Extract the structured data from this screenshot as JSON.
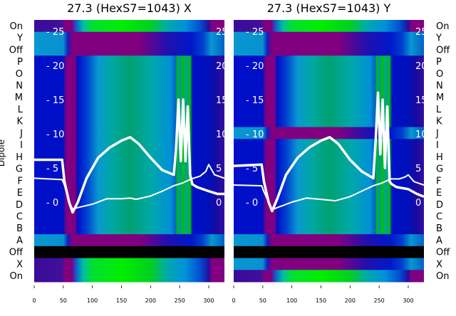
{
  "chart_data": [
    {
      "type": "heatmap",
      "title": "27.3 (HexS7=1043) X",
      "ylabel": "Dipole",
      "row_labels": [
        "On",
        "Y",
        "Off",
        "P",
        "O",
        "N",
        "M",
        "L",
        "K",
        "J",
        "I",
        "H",
        "G",
        "F",
        "E",
        "D",
        "C",
        "B",
        "A",
        "Off",
        "X",
        "On"
      ],
      "row_profiles": [
        "on",
        "ring",
        "ring",
        "dip",
        "dip",
        "dip",
        "dip",
        "dip",
        "dip",
        "dip",
        "dip",
        "dip",
        "dip",
        "dip",
        "dip",
        "dip",
        "dip",
        "dip",
        "ring",
        "off",
        "on",
        "on"
      ],
      "xlim": [
        0,
        327
      ],
      "x_ticks": [
        "0",
        "50",
        "100",
        "150",
        "200",
        "250",
        "300"
      ],
      "overlay_ylim": [
        -3,
        26
      ],
      "overlay_y_ticks": [
        "0",
        "5",
        "10",
        "15",
        "20",
        "25"
      ],
      "series": [
        {
          "name": "trace-1",
          "x": [
            0,
            48,
            52,
            60,
            66,
            75,
            90,
            110,
            130,
            150,
            165,
            180,
            200,
            220,
            240,
            244,
            248,
            252,
            256,
            260,
            264,
            268,
            272,
            280,
            300,
            315,
            327
          ],
          "y": [
            6.2,
            6.2,
            3,
            0,
            -1.5,
            0,
            3.5,
            6.5,
            8,
            9,
            9.5,
            8.5,
            6.5,
            4.7,
            4,
            8,
            15,
            6,
            15,
            6,
            14,
            4,
            2.6,
            2.2,
            1.6,
            1.2,
            1.2
          ]
        },
        {
          "name": "trace-2",
          "x": [
            0,
            48,
            52,
            60,
            66,
            75,
            100,
            125,
            150,
            165,
            175,
            200,
            220,
            240,
            255,
            270,
            285,
            295,
            300,
            310,
            327
          ],
          "y": [
            3.5,
            3.3,
            2.5,
            0,
            -1,
            -0.8,
            -0.3,
            0.5,
            0.5,
            0.6,
            0.4,
            0.9,
            1.6,
            2.4,
            2.8,
            3.4,
            3.8,
            4.5,
            5.5,
            4,
            3.5
          ]
        }
      ]
    },
    {
      "type": "heatmap",
      "title": "27.3 (HexS7=1043) Y",
      "row_labels": [
        "On",
        "Y",
        "Off",
        "P",
        "O",
        "N",
        "M",
        "L",
        "K",
        "J",
        "I",
        "H",
        "G",
        "F",
        "E",
        "D",
        "C",
        "B",
        "A",
        "Off",
        "X",
        "On"
      ],
      "row_profiles": [
        "on",
        "ring",
        "ring",
        "dip",
        "dip",
        "dip",
        "dip",
        "dip",
        "dip",
        "ring",
        "dip",
        "dip",
        "dip",
        "dip",
        "dip",
        "dip",
        "dip",
        "dip",
        "ring",
        "off",
        "ring",
        "on"
      ],
      "xlim": [
        0,
        327
      ],
      "x_ticks": [
        "0",
        "50",
        "100",
        "150",
        "200",
        "250",
        "300"
      ],
      "overlay_ylim": [
        -3,
        26
      ],
      "overlay_y_ticks": [
        "0",
        "5",
        "10",
        "15",
        "20",
        "25"
      ],
      "series": [
        {
          "name": "trace-1",
          "x": [
            0,
            48,
            52,
            60,
            66,
            75,
            90,
            110,
            130,
            150,
            165,
            180,
            200,
            220,
            240,
            244,
            248,
            252,
            256,
            260,
            264,
            268,
            272,
            280,
            300,
            315,
            327
          ],
          "y": [
            5.3,
            5.5,
            3,
            0,
            -1.3,
            0.5,
            4,
            6.5,
            8,
            9,
            9.5,
            8.5,
            6.2,
            4.5,
            3.5,
            9,
            16,
            7,
            15,
            5,
            14,
            3,
            2.6,
            2.2,
            1.9,
            1.2,
            0.8
          ]
        },
        {
          "name": "trace-2",
          "x": [
            0,
            48,
            52,
            60,
            66,
            75,
            100,
            125,
            150,
            175,
            200,
            220,
            240,
            255,
            270,
            285,
            295,
            300,
            310,
            327
          ],
          "y": [
            2.5,
            2.4,
            1.5,
            0,
            -1.1,
            -0.8,
            0,
            0.6,
            0.4,
            0.2,
            0.8,
            1.6,
            2.4,
            2.8,
            3.4,
            3.4,
            3.7,
            4,
            3,
            2.5
          ]
        }
      ]
    }
  ],
  "colors": {
    "trace": "#ffffff",
    "background": "#ffffff"
  }
}
